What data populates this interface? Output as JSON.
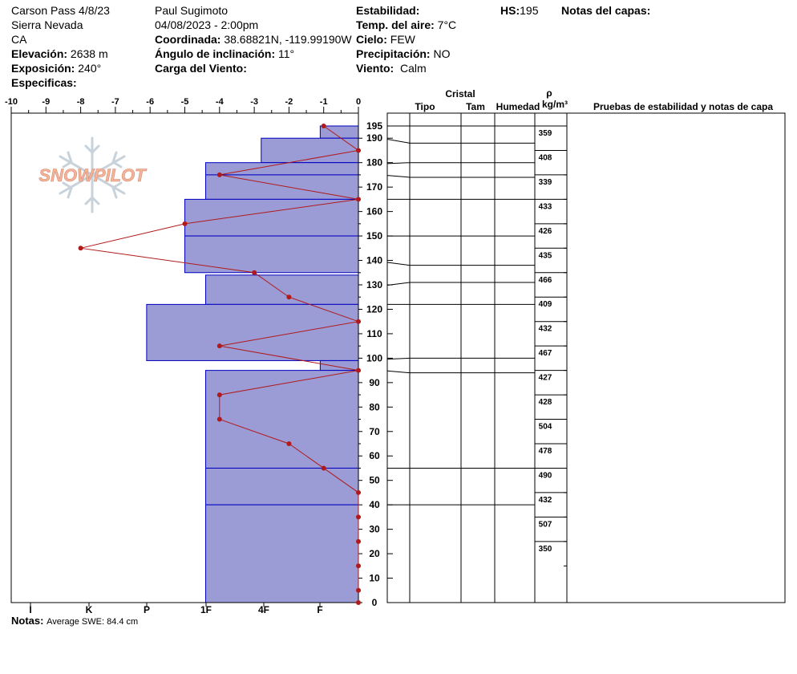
{
  "header": {
    "title": "Carson Pass 4/8/23",
    "range": "Sierra Nevada",
    "state": "CA",
    "elevation_label": "Elevación:",
    "elevation": "2638 m",
    "aspect_label": "Exposición:",
    "aspect": "240°",
    "specifics_label": "Especificas:",
    "observer": "Paul Sugimoto",
    "datetime": "04/08/2023 - 2:00pm",
    "coord_label": "Coordinada:",
    "coord": "38.68821N, -119.99190W",
    "slope_label": "Ángulo de inclinación:",
    "slope": "11°",
    "wind_load_label": "Carga del Viento:",
    "wind_load": "",
    "stability_label": "Estabilidad:",
    "stability": "",
    "air_temp_label": "Temp. del aire:",
    "air_temp": "7°C",
    "sky_label": "Cielo:",
    "sky": "FEW",
    "precip_label": "Precipitación:",
    "precip": "NO",
    "wind_label": "Viento:",
    "wind": "Calm",
    "hs_label": "HS:",
    "hs": "195",
    "layer_notes_label": "Notas del capas:"
  },
  "notes": {
    "label": "Notas:",
    "text": "Average SWE: 84.4 cm"
  },
  "logo_text": "SNOWPILOT",
  "colors": {
    "hardness_fill": "#9b9bd6",
    "hardness_line": "#0000c0",
    "temp_line": "#b01a1a",
    "logo_orange": "#f4b49a",
    "logo_gray": "#c7d2da"
  },
  "chart_data": {
    "type": "snow-profile",
    "temp_axis": {
      "ticks": [
        -10,
        -9,
        -8,
        -7,
        -6,
        -5,
        -4,
        -3,
        -2,
        -1,
        0
      ],
      "range": [
        -10,
        0
      ]
    },
    "height_axis": {
      "ticks": [
        0,
        10,
        20,
        30,
        40,
        50,
        60,
        70,
        80,
        90,
        100,
        110,
        120,
        130,
        140,
        150,
        160,
        170,
        180,
        190,
        195
      ],
      "range": [
        0,
        195
      ]
    },
    "hardness_ticks": [
      "I",
      "K",
      "P",
      "1F",
      "4F",
      "F"
    ],
    "hardness_layers": [
      {
        "top": 195,
        "bottom": 190,
        "temp_units": -1.1
      },
      {
        "top": 190,
        "bottom": 180,
        "temp_units": -2.8
      },
      {
        "top": 180,
        "bottom": 175,
        "temp_units": -4.4
      },
      {
        "top": 175,
        "bottom": 165,
        "temp_units": -4.4
      },
      {
        "top": 165,
        "bottom": 150,
        "temp_units": -5.0
      },
      {
        "top": 150,
        "bottom": 135,
        "temp_units": -5.0
      },
      {
        "top": 134,
        "bottom": 122,
        "temp_units": -4.4
      },
      {
        "top": 122,
        "bottom": 99,
        "temp_units": -6.1
      },
      {
        "top": 99,
        "bottom": 95,
        "temp_units": -1.1
      },
      {
        "top": 95,
        "bottom": 55,
        "temp_units": -4.4
      },
      {
        "top": 55,
        "bottom": 40,
        "temp_units": -4.4
      },
      {
        "top": 40,
        "bottom": 0,
        "temp_units": -4.4
      }
    ],
    "temperature_profile": [
      {
        "height": 195,
        "temp": -1
      },
      {
        "height": 185,
        "temp": 0
      },
      {
        "height": 175,
        "temp": -4
      },
      {
        "height": 165,
        "temp": 0
      },
      {
        "height": 155,
        "temp": -5
      },
      {
        "height": 145,
        "temp": -8
      },
      {
        "height": 135,
        "temp": -3
      },
      {
        "height": 125,
        "temp": -2
      },
      {
        "height": 115,
        "temp": 0
      },
      {
        "height": 105,
        "temp": -4
      },
      {
        "height": 95,
        "temp": 0
      },
      {
        "height": 85,
        "temp": -4
      },
      {
        "height": 75,
        "temp": -4
      },
      {
        "height": 65,
        "temp": -2
      },
      {
        "height": 55,
        "temp": -1
      },
      {
        "height": 45,
        "temp": 0
      },
      {
        "height": 35,
        "temp": 0
      },
      {
        "height": 25,
        "temp": 0
      },
      {
        "height": 15,
        "temp": 0
      },
      {
        "height": 5,
        "temp": 0
      }
    ],
    "layer_boundaries": [
      195,
      188,
      180,
      174,
      165,
      150,
      138,
      131,
      122,
      100,
      94,
      55,
      40
    ],
    "table_headers": {
      "crystal": "Cristal",
      "type": "Tipo",
      "size": "Tam",
      "humidity": "Humedad",
      "rho": "ρ",
      "density_unit": "kg/m³",
      "tests": "Pruebas de estabilidad y notas de capa"
    },
    "densities": [
      {
        "value": 359,
        "top": 195,
        "bottom": 185
      },
      {
        "value": 408,
        "top": 185,
        "bottom": 175
      },
      {
        "value": 339,
        "top": 175,
        "bottom": 165
      },
      {
        "value": 433,
        "top": 165,
        "bottom": 155
      },
      {
        "value": 426,
        "top": 155,
        "bottom": 145
      },
      {
        "value": 435,
        "top": 145,
        "bottom": 135
      },
      {
        "value": 466,
        "top": 135,
        "bottom": 125
      },
      {
        "value": 409,
        "top": 125,
        "bottom": 115
      },
      {
        "value": 432,
        "top": 115,
        "bottom": 105
      },
      {
        "value": 467,
        "top": 105,
        "bottom": 95
      },
      {
        "value": 427,
        "top": 95,
        "bottom": 85
      },
      {
        "value": 428,
        "top": 85,
        "bottom": 75
      },
      {
        "value": 504,
        "top": 75,
        "bottom": 65
      },
      {
        "value": 478,
        "top": 65,
        "bottom": 55
      },
      {
        "value": 490,
        "top": 55,
        "bottom": 45
      },
      {
        "value": 432,
        "top": 45,
        "bottom": 35
      },
      {
        "value": 507,
        "top": 35,
        "bottom": 25
      },
      {
        "value": 350,
        "top": 25,
        "bottom": 15
      }
    ]
  }
}
